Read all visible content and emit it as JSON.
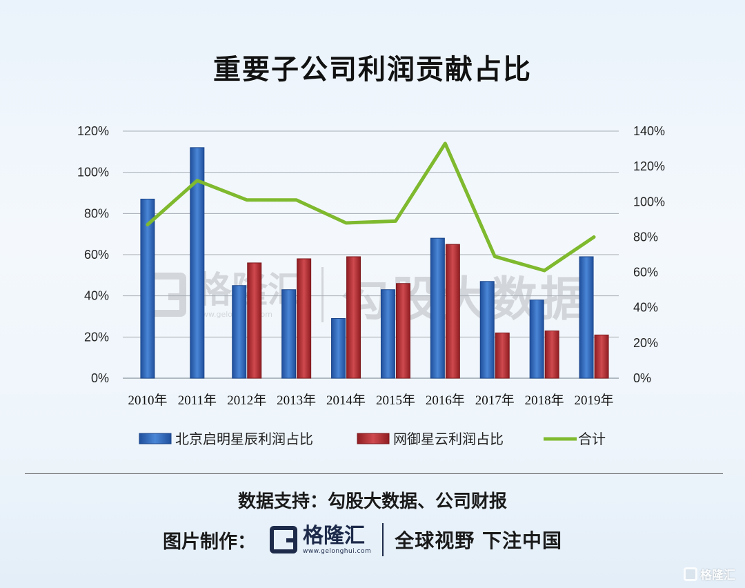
{
  "title": "重要子公司利润贡献占比",
  "watermark": {
    "brand": "格隆汇",
    "url": "www.gelonghui.com",
    "text": "勾股大数据"
  },
  "source": "数据支持：勾股大数据、公司财报",
  "credit": {
    "label": "图片制作：",
    "brand": "格隆汇",
    "url": "www.gelonghui.com",
    "slogan": "全球视野 下注中国"
  },
  "corner_brand": "格隆汇",
  "colors": {
    "bar1": "#2e62b3",
    "bar2": "#b32a2e",
    "line": "#7fb92e"
  },
  "chart_data": {
    "type": "bar",
    "categories": [
      "2010年",
      "2011年",
      "2012年",
      "2013年",
      "2014年",
      "2015年",
      "2016年",
      "2017年",
      "2018年",
      "2019年"
    ],
    "series": [
      {
        "name": "北京启明星辰利润占比",
        "type": "bar",
        "axis": "left",
        "values": [
          87,
          112,
          45,
          43,
          29,
          43,
          68,
          47,
          38,
          59
        ]
      },
      {
        "name": "网御星云利润占比",
        "type": "bar",
        "axis": "left",
        "values": [
          null,
          null,
          56,
          58,
          59,
          46,
          65,
          22,
          23,
          21
        ]
      },
      {
        "name": "合计",
        "type": "line",
        "axis": "right",
        "values": [
          87,
          112,
          101,
          101,
          88,
          89,
          133,
          69,
          61,
          80
        ]
      }
    ],
    "y_left": {
      "min": 0,
      "max": 120,
      "step": 20,
      "ticks": [
        "0%",
        "20%",
        "40%",
        "60%",
        "80%",
        "100%",
        "120%"
      ]
    },
    "y_right": {
      "min": 0,
      "max": 140,
      "step": 20,
      "ticks": [
        "0%",
        "20%",
        "40%",
        "60%",
        "80%",
        "100%",
        "120%",
        "140%"
      ]
    },
    "grid": true,
    "legend": "bottom"
  }
}
